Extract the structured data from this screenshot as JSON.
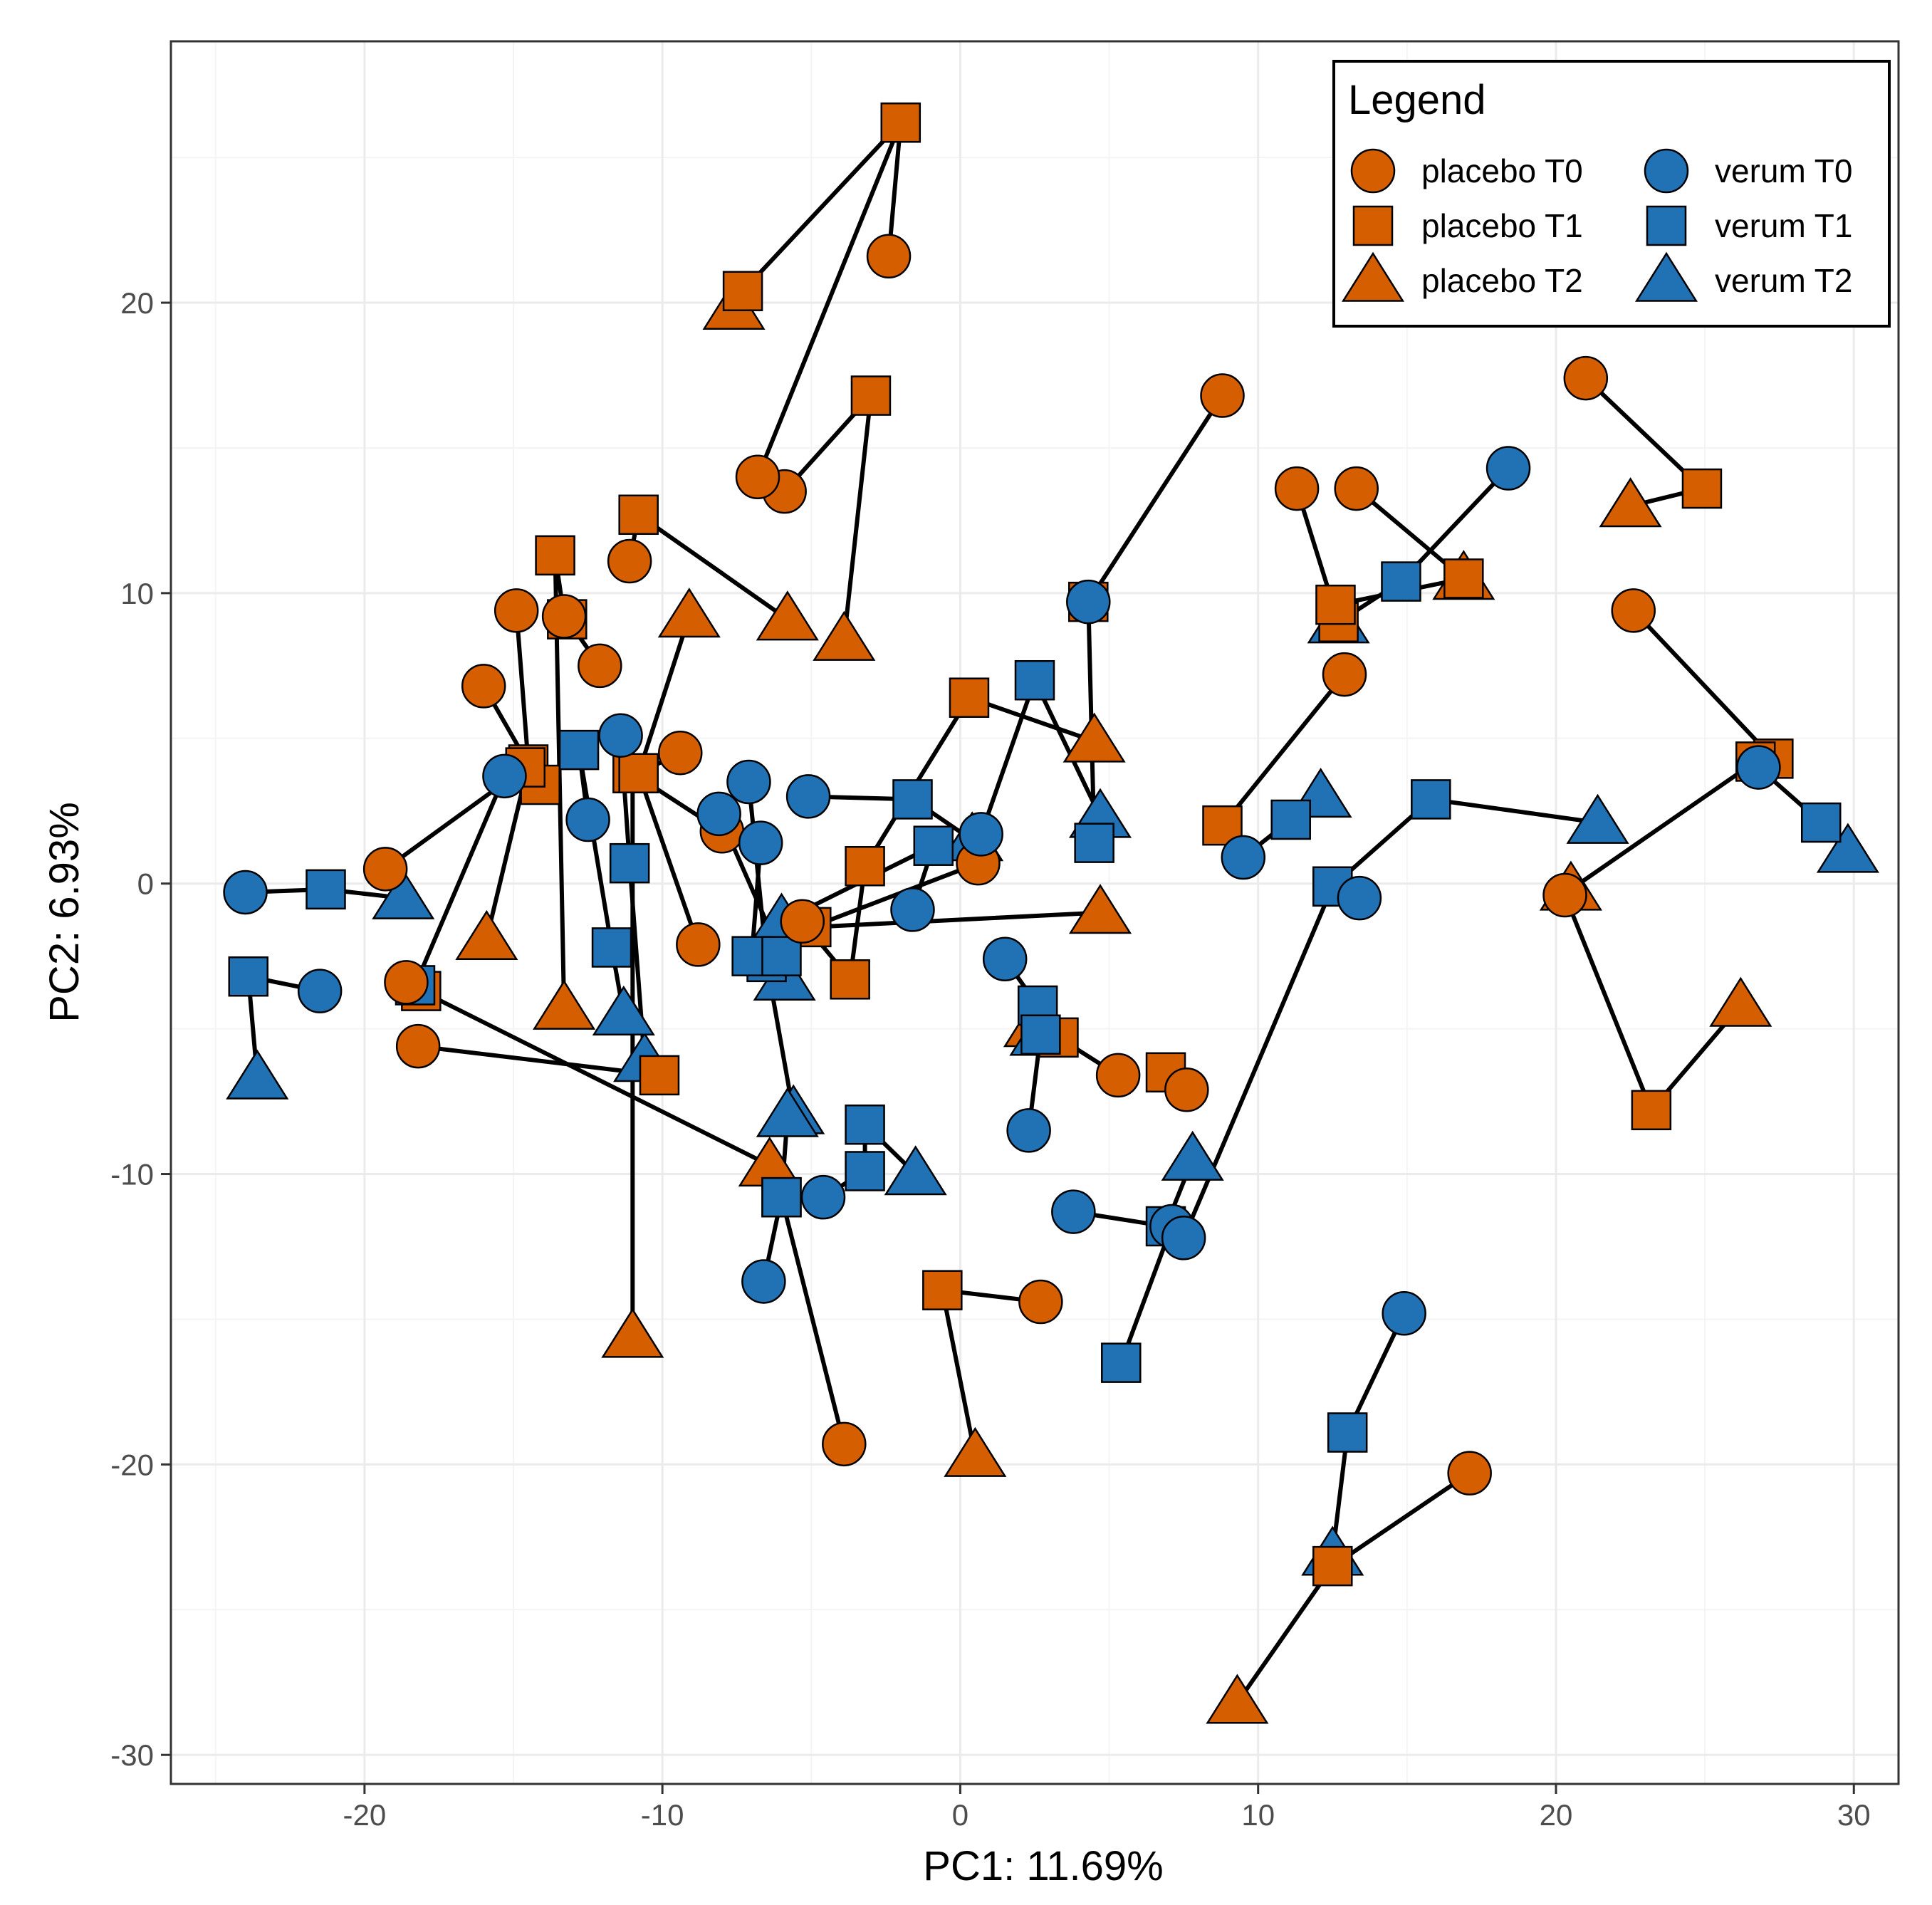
{
  "chart_data": {
    "type": "scatter",
    "xlabel": "PC1: 11.69%",
    "ylabel": "PC2: 6.93%",
    "xlim": [
      -26.5,
      31.5
    ],
    "ylim": [
      -31,
      29
    ],
    "x_ticks": [
      -20,
      -10,
      0,
      10,
      20,
      30
    ],
    "y_ticks": [
      -30,
      -20,
      -10,
      0,
      10,
      20
    ],
    "x_tick_labels": [
      "-20",
      "-10",
      "0",
      "10",
      "20",
      "30"
    ],
    "y_tick_labels": [
      "-30",
      "-20",
      "-10",
      "0",
      "10",
      "20"
    ],
    "grid": true,
    "legend": {
      "title": "Legend",
      "position": "top-right",
      "entries": [
        {
          "group": "placebo",
          "time": "T0",
          "label": "placebo T0"
        },
        {
          "group": "placebo",
          "time": "T1",
          "label": "placebo T1"
        },
        {
          "group": "placebo",
          "time": "T2",
          "label": "placebo T2"
        },
        {
          "group": "verum",
          "time": "T0",
          "label": "verum T0"
        },
        {
          "group": "verum",
          "time": "T1",
          "label": "verum T1"
        },
        {
          "group": "verum",
          "time": "T2",
          "label": "verum T2"
        }
      ]
    },
    "colors": {
      "placebo": "#d55e00",
      "verum": "#2171b5"
    },
    "shapes": {
      "T0": "circle",
      "T1": "square",
      "T2": "triangle"
    },
    "subjects": [
      {
        "group": "placebo",
        "points": [
          [
            -2.4,
            21.6
          ],
          [
            -2.0,
            26.2
          ],
          [
            -7.3,
            20.4
          ],
          [
            -7.6,
            19.8
          ]
        ]
      },
      {
        "group": "placebo",
        "points": [
          [
            -5.9,
            13.5
          ],
          [
            -3.0,
            16.8
          ],
          [
            -3.9,
            8.4
          ]
        ]
      },
      {
        "group": "placebo",
        "points": [
          [
            -6.8,
            14.0
          ],
          [
            -2.0,
            26.2
          ]
        ]
      },
      {
        "group": "placebo",
        "points": [
          [
            -11.1,
            11.1
          ],
          [
            -10.8,
            12.7
          ],
          [
            -5.8,
            9.1
          ]
        ]
      },
      {
        "group": "placebo",
        "points": [
          [
            -14.9,
            9.4
          ],
          [
            -14.5,
            4.1
          ],
          [
            -15.9,
            -1.9
          ]
        ]
      },
      {
        "group": "placebo",
        "points": [
          [
            -13.3,
            9.2
          ],
          [
            -13.6,
            11.3
          ],
          [
            -13.3,
            -4.3
          ]
        ]
      },
      {
        "group": "placebo",
        "points": [
          [
            -16.0,
            6.8
          ],
          [
            -14.1,
            3.4
          ]
        ]
      },
      {
        "group": "placebo",
        "points": [
          [
            -12.1,
            7.5
          ],
          [
            -13.2,
            9.1
          ]
        ]
      },
      {
        "group": "placebo",
        "points": [
          [
            -9.4,
            4.5
          ],
          [
            -10.8,
            3.8
          ],
          [
            -9.1,
            9.2
          ]
        ]
      },
      {
        "group": "placebo",
        "points": [
          [
            -19.3,
            0.5
          ],
          [
            -14.6,
            4.0
          ]
        ]
      },
      {
        "group": "placebo",
        "points": [
          [
            -8.0,
            1.8
          ],
          [
            -11.0,
            3.8
          ],
          [
            -11.0,
            -15.6
          ]
        ]
      },
      {
        "group": "placebo",
        "points": [
          [
            -8.8,
            -2.1
          ],
          [
            -10.8,
            3.8
          ]
        ]
      },
      {
        "group": "placebo",
        "points": [
          [
            -18.2,
            -5.6
          ],
          [
            -10.1,
            -6.6
          ]
        ]
      },
      {
        "group": "placebo",
        "points": [
          [
            -18.6,
            -3.4
          ],
          [
            -18.1,
            -3.7
          ],
          [
            -6.4,
            -9.7
          ]
        ]
      },
      {
        "group": "placebo",
        "points": [
          [
            -5.3,
            -1.3
          ],
          [
            -3.7,
            -3.3
          ],
          [
            -3.2,
            0.6
          ],
          [
            0.3,
            6.4
          ],
          [
            4.5,
            4.9
          ]
        ]
      },
      {
        "group": "placebo",
        "points": [
          [
            0.6,
            0.7
          ],
          [
            -5.0,
            -1.5
          ],
          [
            4.7,
            -1.0
          ]
        ]
      },
      {
        "group": "placebo",
        "points": [
          [
            2.7,
            -14.4
          ],
          [
            -0.6,
            -14.0
          ],
          [
            0.5,
            -19.7
          ]
        ]
      },
      {
        "group": "placebo",
        "points": [
          [
            -3.9,
            -19.3
          ],
          [
            -6.0,
            -10.8
          ]
        ]
      },
      {
        "group": "placebo",
        "points": [
          [
            5.3,
            -6.6
          ],
          [
            3.3,
            -5.3
          ],
          [
            2.5,
            -4.9
          ]
        ]
      },
      {
        "group": "placebo",
        "points": [
          [
            7.6,
            -7.1
          ],
          [
            6.9,
            -6.5
          ]
        ]
      },
      {
        "group": "placebo",
        "points": [
          [
            8.8,
            16.8
          ],
          [
            4.3,
            9.7
          ]
        ]
      },
      {
        "group": "placebo",
        "points": [
          [
            11.3,
            13.6
          ],
          [
            12.7,
            9.0
          ],
          [
            12.6,
            9.6
          ],
          [
            16.9,
            10.5
          ]
        ]
      },
      {
        "group": "placebo",
        "points": [
          [
            13.3,
            13.6
          ],
          [
            16.9,
            10.5
          ]
        ]
      },
      {
        "group": "placebo",
        "points": [
          [
            12.9,
            7.2
          ],
          [
            8.8,
            2.0
          ]
        ]
      },
      {
        "group": "placebo",
        "points": [
          [
            21.0,
            17.4
          ],
          [
            24.9,
            13.6
          ],
          [
            22.5,
            13.0
          ]
        ]
      },
      {
        "group": "placebo",
        "points": [
          [
            22.6,
            9.4
          ],
          [
            27.3,
            4.3
          ],
          [
            26.7,
            4.2
          ],
          [
            20.5,
            -0.2
          ]
        ]
      },
      {
        "group": "placebo",
        "points": [
          [
            20.3,
            -0.4
          ],
          [
            23.2,
            -7.8
          ],
          [
            26.2,
            -4.2
          ]
        ]
      },
      {
        "group": "placebo",
        "points": [
          [
            17.1,
            -20.3
          ],
          [
            12.5,
            -23.5
          ],
          [
            9.3,
            -28.2
          ]
        ]
      },
      {
        "group": "verum",
        "points": [
          [
            -24.0,
            -0.3
          ],
          [
            -21.3,
            -0.2
          ],
          [
            -18.7,
            -0.5
          ]
        ]
      },
      {
        "group": "verum",
        "points": [
          [
            -21.5,
            -3.7
          ],
          [
            -23.9,
            -3.2
          ],
          [
            -23.6,
            -6.7
          ]
        ]
      },
      {
        "group": "verum",
        "points": [
          [
            -15.3,
            3.7
          ],
          [
            -18.3,
            -3.5
          ]
        ]
      },
      {
        "group": "verum",
        "points": [
          [
            -11.4,
            5.1
          ],
          [
            -11.1,
            0.7
          ],
          [
            -10.6,
            -6.1
          ]
        ]
      },
      {
        "group": "verum",
        "points": [
          [
            -12.5,
            2.2
          ],
          [
            -12.8,
            4.6
          ],
          [
            -11.7,
            -2.2
          ],
          [
            -11.3,
            -4.5
          ]
        ]
      },
      {
        "group": "verum",
        "points": [
          [
            -7.1,
            3.5
          ],
          [
            -6.5,
            -2.7
          ],
          [
            -5.6,
            -7.9
          ]
        ]
      },
      {
        "group": "verum",
        "points": [
          [
            -6.7,
            1.4
          ],
          [
            -7.0,
            -2.5
          ],
          [
            -5.9,
            -3.3
          ]
        ]
      },
      {
        "group": "verum",
        "points": [
          [
            -6.6,
            -13.7
          ],
          [
            -6.0,
            -10.8
          ],
          [
            -5.8,
            -8.0
          ]
        ]
      },
      {
        "group": "verum",
        "points": [
          [
            -4.6,
            -10.8
          ],
          [
            -3.2,
            -9.9
          ],
          [
            -3.2,
            -8.3
          ],
          [
            -1.5,
            -10.0
          ]
        ]
      },
      {
        "group": "verum",
        "points": [
          [
            -8.1,
            2.4
          ],
          [
            -6.0,
            -2.5
          ]
        ]
      },
      {
        "group": "verum",
        "points": [
          [
            -5.1,
            3.0
          ],
          [
            -1.6,
            2.9
          ],
          [
            0.4,
            1.5
          ]
        ]
      },
      {
        "group": "verum",
        "points": [
          [
            -1.6,
            -0.9
          ],
          [
            -0.9,
            1.3
          ],
          [
            -6.0,
            -1.3
          ]
        ]
      },
      {
        "group": "verum",
        "points": [
          [
            1.5,
            -2.6
          ],
          [
            2.6,
            -4.2
          ],
          [
            2.7,
            -5.2
          ]
        ]
      },
      {
        "group": "verum",
        "points": [
          [
            2.3,
            -8.5
          ],
          [
            2.7,
            -5.2
          ]
        ]
      },
      {
        "group": "verum",
        "points": [
          [
            0.7,
            1.7
          ],
          [
            2.5,
            7.0
          ],
          [
            4.7,
            2.3
          ]
        ]
      },
      {
        "group": "verum",
        "points": [
          [
            4.3,
            9.7
          ],
          [
            4.5,
            1.4
          ]
        ]
      },
      {
        "group": "verum",
        "points": [
          [
            3.8,
            -11.3
          ],
          [
            6.9,
            -11.8
          ],
          [
            7.8,
            -9.5
          ]
        ]
      },
      {
        "group": "verum",
        "points": [
          [
            7.1,
            -11.8
          ],
          [
            5.4,
            -16.5
          ]
        ]
      },
      {
        "group": "verum",
        "points": [
          [
            7.5,
            -12.2
          ],
          [
            12.5,
            -0.1
          ],
          [
            15.8,
            2.9
          ],
          [
            21.4,
            2.1
          ]
        ]
      },
      {
        "group": "verum",
        "points": [
          [
            9.5,
            0.9
          ],
          [
            11.1,
            2.2
          ],
          [
            12.1,
            3.0
          ]
        ]
      },
      {
        "group": "verum",
        "points": [
          [
            13.4,
            -0.5
          ],
          [
            12.5,
            -0.1
          ]
        ]
      },
      {
        "group": "verum",
        "points": [
          [
            18.4,
            14.3
          ],
          [
            14.8,
            10.4
          ],
          [
            12.7,
            9.0
          ]
        ]
      },
      {
        "group": "verum",
        "points": [
          [
            26.8,
            4.0
          ],
          [
            28.9,
            2.1
          ],
          [
            29.8,
            1.1
          ]
        ]
      },
      {
        "group": "verum",
        "points": [
          [
            14.9,
            -14.8
          ],
          [
            13.0,
            -18.9
          ],
          [
            12.5,
            -23.1
          ]
        ]
      }
    ]
  }
}
